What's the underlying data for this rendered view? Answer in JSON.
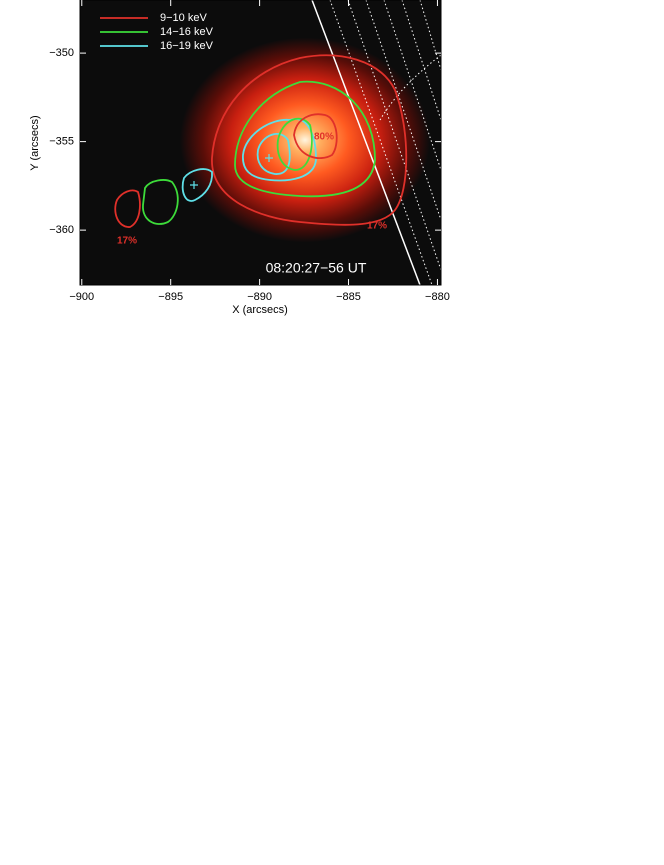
{
  "chart_data": {
    "type": "image",
    "x_label": "X (arcsecs)",
    "y_label": "Y (arcsecs)",
    "xlim": [
      -900.1,
      -879.8
    ],
    "ylim": [
      -363.1,
      -347.0
    ],
    "xticks": [
      {
        "value": -900,
        "label": "−900"
      },
      {
        "value": -895,
        "label": "−895"
      },
      {
        "value": -890,
        "label": "−890"
      },
      {
        "value": -885,
        "label": "−885"
      },
      {
        "value": -880,
        "label": "−880"
      }
    ],
    "yticks": [
      {
        "value": -350,
        "label": "−350"
      },
      {
        "value": -355,
        "label": "−355"
      },
      {
        "value": -360,
        "label": "−360"
      }
    ],
    "series": [
      {
        "name": "9−10 keV",
        "color": "#e0302a"
      },
      {
        "name": "14−16 keV",
        "color": "#3ddc3a"
      },
      {
        "name": "16−19 keV",
        "color": "#5fe0e8"
      }
    ],
    "annotations": [
      "17%",
      "80%",
      "17%",
      "08:20:27−56 UT"
    ]
  }
}
